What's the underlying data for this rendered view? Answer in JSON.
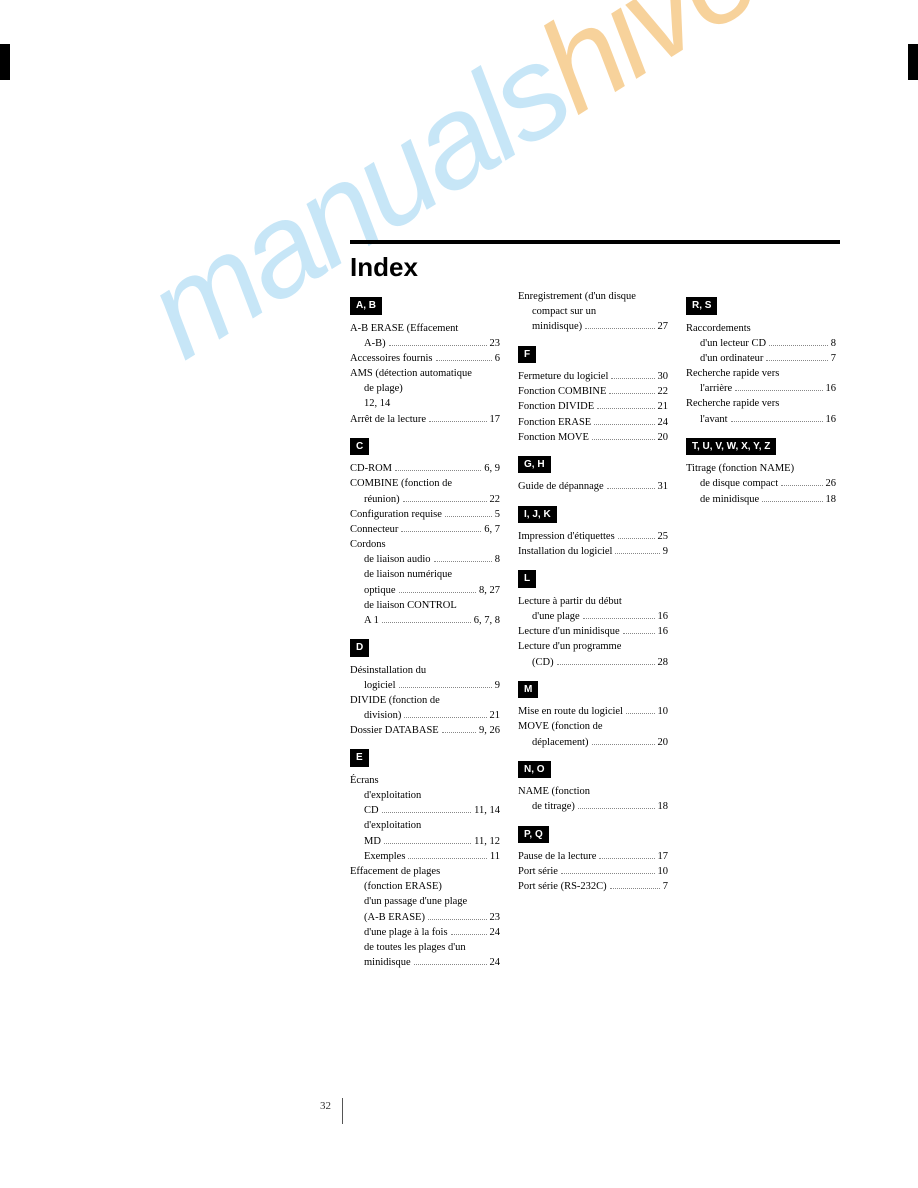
{
  "page_number": "32",
  "title": "Index",
  "watermark": {
    "part1": "manuals",
    "part2": "hive.com"
  },
  "columns": [
    {
      "sections": [
        {
          "label": "A, B",
          "entries": [
            {
              "text": "A-B ERASE (Effacement",
              "page": "",
              "indent": 0,
              "nodots": true
            },
            {
              "text": "A-B)",
              "page": "23",
              "indent": 1
            },
            {
              "text": "Accessoires fournis",
              "page": "6",
              "indent": 0
            },
            {
              "text": "AMS (détection automatique",
              "page": "",
              "indent": 0,
              "nodots": true
            },
            {
              "text": "de plage)",
              "page": "",
              "indent": 1,
              "nodots": true
            },
            {
              "text": "12, 14",
              "page": "",
              "indent": 1,
              "nodots": true
            },
            {
              "text": "Arrêt de la lecture",
              "page": "17",
              "indent": 0
            }
          ]
        },
        {
          "label": "C",
          "entries": [
            {
              "text": "CD-ROM",
              "page": "6, 9",
              "indent": 0
            },
            {
              "text": "COMBINE (fonction de",
              "page": "",
              "indent": 0,
              "nodots": true
            },
            {
              "text": "réunion)",
              "page": "22",
              "indent": 1
            },
            {
              "text": "Configuration requise",
              "page": "5",
              "indent": 0
            },
            {
              "text": "Connecteur",
              "page": "6, 7",
              "indent": 0
            },
            {
              "text": "Cordons",
              "page": "",
              "indent": 0,
              "nodots": true
            },
            {
              "text": "de liaison audio",
              "page": "8",
              "indent": 1
            },
            {
              "text": "de liaison numérique",
              "page": "",
              "indent": 1,
              "nodots": true
            },
            {
              "text": "optique",
              "page": "8, 27",
              "indent": 1
            },
            {
              "text": "de liaison CONTROL",
              "page": "",
              "indent": 1,
              "nodots": true
            },
            {
              "text": "A 1",
              "page": "6, 7, 8",
              "indent": 1
            }
          ]
        },
        {
          "label": "D",
          "entries": [
            {
              "text": "Désinstallation du",
              "page": "",
              "indent": 0,
              "nodots": true
            },
            {
              "text": "logiciel",
              "page": "9",
              "indent": 1
            },
            {
              "text": "DIVIDE (fonction de",
              "page": "",
              "indent": 0,
              "nodots": true
            },
            {
              "text": "division)",
              "page": "21",
              "indent": 1
            },
            {
              "text": "Dossier DATABASE",
              "page": "9, 26",
              "indent": 0
            }
          ]
        },
        {
          "label": "E",
          "entries": [
            {
              "text": "Écrans",
              "page": "",
              "indent": 0,
              "nodots": true
            },
            {
              "text": "d'exploitation",
              "page": "",
              "indent": 1,
              "nodots": true
            },
            {
              "text": "CD",
              "page": "11, 14",
              "indent": 1
            },
            {
              "text": "d'exploitation",
              "page": "",
              "indent": 1,
              "nodots": true
            },
            {
              "text": "MD",
              "page": "11, 12",
              "indent": 1
            },
            {
              "text": "Exemples",
              "page": "11",
              "indent": 1
            },
            {
              "text": "Effacement de plages",
              "page": "",
              "indent": 0,
              "nodots": true
            },
            {
              "text": "(fonction ERASE)",
              "page": "",
              "indent": 1,
              "nodots": true
            },
            {
              "text": "d'un passage d'une plage",
              "page": "",
              "indent": 1,
              "nodots": true
            },
            {
              "text": "(A-B ERASE)",
              "page": "23",
              "indent": 1
            },
            {
              "text": "d'une plage à la fois",
              "page": "24",
              "indent": 1
            },
            {
              "text": "de toutes les plages d'un",
              "page": "",
              "indent": 1,
              "nodots": true
            },
            {
              "text": "minidisque",
              "page": "24",
              "indent": 1
            }
          ]
        }
      ]
    },
    {
      "sections": [
        {
          "label": "",
          "entries": [
            {
              "text": "Enregistrement (d'un disque",
              "page": "",
              "indent": 0,
              "nodots": true
            },
            {
              "text": "compact sur un",
              "page": "",
              "indent": 1,
              "nodots": true
            },
            {
              "text": "minidisque)",
              "page": "27",
              "indent": 1
            }
          ]
        },
        {
          "label": "F",
          "entries": [
            {
              "text": "Fermeture du logiciel",
              "page": "30",
              "indent": 0
            },
            {
              "text": "Fonction COMBINE",
              "page": "22",
              "indent": 0
            },
            {
              "text": "Fonction DIVIDE",
              "page": "21",
              "indent": 0
            },
            {
              "text": "Fonction ERASE",
              "page": "24",
              "indent": 0
            },
            {
              "text": "Fonction MOVE",
              "page": "20",
              "indent": 0
            }
          ]
        },
        {
          "label": "G, H",
          "entries": [
            {
              "text": "Guide de dépannage",
              "page": "31",
              "indent": 0
            }
          ]
        },
        {
          "label": "I, J, K",
          "entries": [
            {
              "text": "Impression d'étiquettes",
              "page": "25",
              "indent": 0
            },
            {
              "text": "Installation du logiciel",
              "page": "9",
              "indent": 0
            }
          ]
        },
        {
          "label": "L",
          "entries": [
            {
              "text": "Lecture à partir du début",
              "page": "",
              "indent": 0,
              "nodots": true
            },
            {
              "text": "d'une plage",
              "page": "16",
              "indent": 1
            },
            {
              "text": "Lecture d'un minidisque",
              "page": "16",
              "indent": 0
            },
            {
              "text": "Lecture d'un programme",
              "page": "",
              "indent": 0,
              "nodots": true
            },
            {
              "text": "(CD)",
              "page": "28",
              "indent": 1
            }
          ]
        },
        {
          "label": "M",
          "entries": [
            {
              "text": "Mise en route du logiciel",
              "page": "10",
              "indent": 0
            },
            {
              "text": "MOVE (fonction de",
              "page": "",
              "indent": 0,
              "nodots": true
            },
            {
              "text": "déplacement)",
              "page": "20",
              "indent": 1
            }
          ]
        },
        {
          "label": "N, O",
          "entries": [
            {
              "text": "NAME (fonction",
              "page": "",
              "indent": 0,
              "nodots": true
            },
            {
              "text": "de titrage)",
              "page": "18",
              "indent": 1
            }
          ]
        },
        {
          "label": "P, Q",
          "entries": [
            {
              "text": "Pause de la lecture",
              "page": "17",
              "indent": 0
            },
            {
              "text": "Port série",
              "page": "10",
              "indent": 0
            },
            {
              "text": "Port série (RS-232C)",
              "page": "7",
              "indent": 0
            }
          ]
        }
      ]
    },
    {
      "sections": [
        {
          "label": "R, S",
          "entries": [
            {
              "text": "Raccordements",
              "page": "",
              "indent": 0,
              "nodots": true
            },
            {
              "text": "d'un lecteur CD",
              "page": "8",
              "indent": 1
            },
            {
              "text": "d'un ordinateur",
              "page": "7",
              "indent": 1
            },
            {
              "text": "Recherche rapide vers",
              "page": "",
              "indent": 0,
              "nodots": true
            },
            {
              "text": "l'arrière",
              "page": "16",
              "indent": 1
            },
            {
              "text": "Recherche rapide vers",
              "page": "",
              "indent": 0,
              "nodots": true
            },
            {
              "text": "l'avant",
              "page": "16",
              "indent": 1
            }
          ]
        },
        {
          "label": "T, U, V, W, X, Y, Z",
          "entries": [
            {
              "text": "Titrage (fonction NAME)",
              "page": "",
              "indent": 0,
              "nodots": true
            },
            {
              "text": "de disque compact",
              "page": "26",
              "indent": 1
            },
            {
              "text": "de minidisque",
              "page": "18",
              "indent": 1
            }
          ]
        }
      ]
    }
  ]
}
